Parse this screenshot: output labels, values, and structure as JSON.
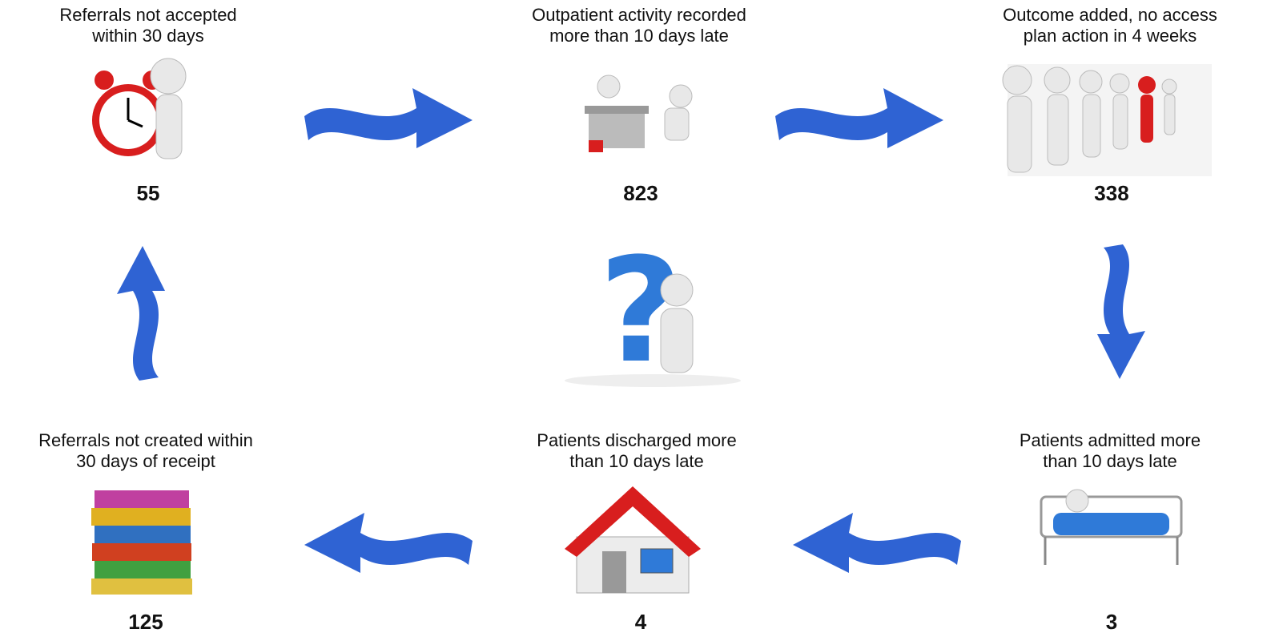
{
  "nodes": [
    {
      "label": [
        "Referrals not accepted",
        "within 30 days"
      ],
      "value": 55
    },
    {
      "label": [
        "Outpatient activity recorded",
        "more than 10 days late"
      ],
      "value": 823
    },
    {
      "label": [
        "Outcome added, no access",
        "plan action in 4 weeks"
      ],
      "value": 338
    },
    {
      "label": [
        "Patients admitted more",
        "than 10 days late"
      ],
      "value": 3
    },
    {
      "label": [
        "Patients discharged more",
        "than 10 days late"
      ],
      "value": 4
    },
    {
      "label": [
        "Referrals not created within",
        "30 days of receipt"
      ],
      "value": 125
    }
  ]
}
